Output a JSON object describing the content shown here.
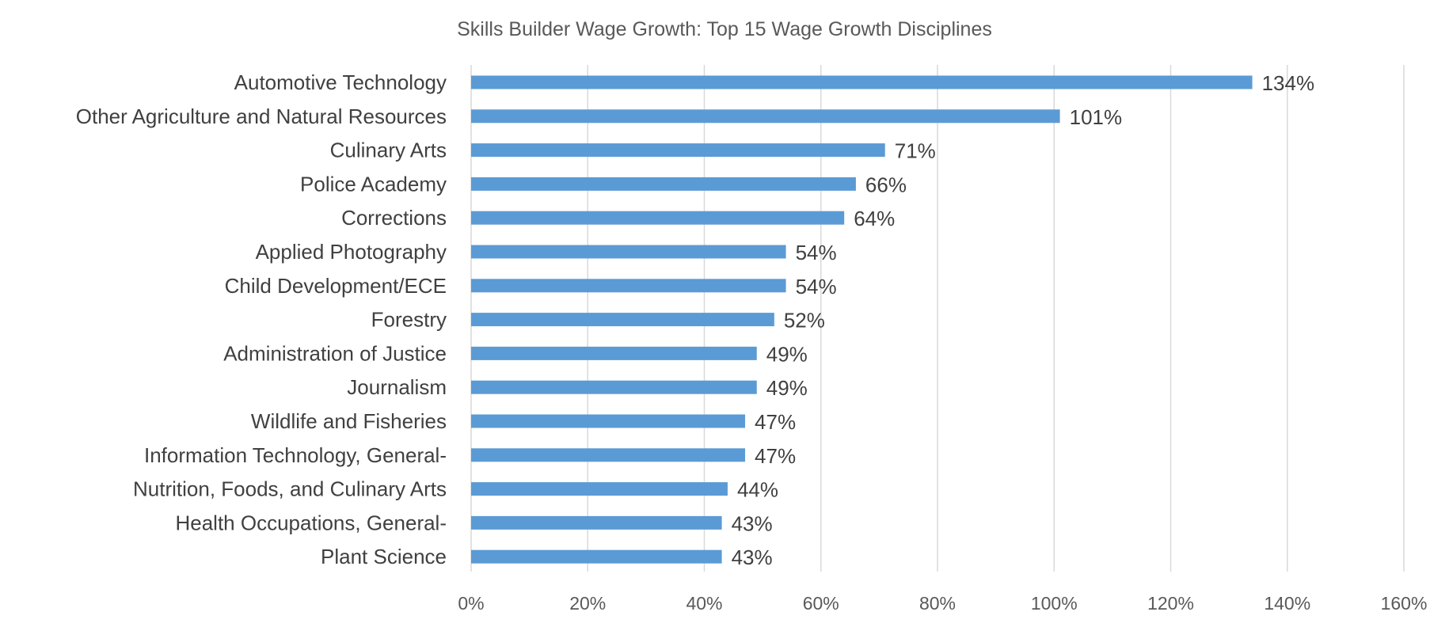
{
  "chart_data": {
    "type": "bar",
    "orientation": "horizontal",
    "title": "Skills Builder Wage Growth: Top 15 Wage Growth Disciplines",
    "xlabel": "",
    "ylabel": "",
    "categories": [
      "Automotive Technology",
      "Other Agriculture and Natural Resources",
      "Culinary Arts",
      "Police Academy",
      "Corrections",
      "Applied Photography",
      "Child Development/ECE",
      "Forestry",
      "Administration of Justice",
      "Journalism",
      "Wildlife and Fisheries",
      "Information Technology, General-",
      "Nutrition, Foods, and Culinary Arts",
      "Health Occupations, General-",
      "Plant Science"
    ],
    "values": [
      134,
      101,
      71,
      66,
      64,
      54,
      54,
      52,
      49,
      49,
      47,
      47,
      44,
      43,
      43
    ],
    "data_labels": [
      "134%",
      "101%",
      "71%",
      "66%",
      "64%",
      "54%",
      "54%",
      "52%",
      "49%",
      "49%",
      "47%",
      "47%",
      "44%",
      "43%",
      "43%"
    ],
    "xlim": [
      0,
      160
    ],
    "x_ticks": [
      0,
      20,
      40,
      60,
      80,
      100,
      120,
      140,
      160
    ],
    "x_tick_labels": [
      "0%",
      "20%",
      "40%",
      "60%",
      "80%",
      "100%",
      "120%",
      "140%",
      "160%"
    ],
    "grid": "vertical major gridlines",
    "legend": "none",
    "bar_color": "#5b9bd5",
    "grid_color": "#d9d9d9"
  }
}
